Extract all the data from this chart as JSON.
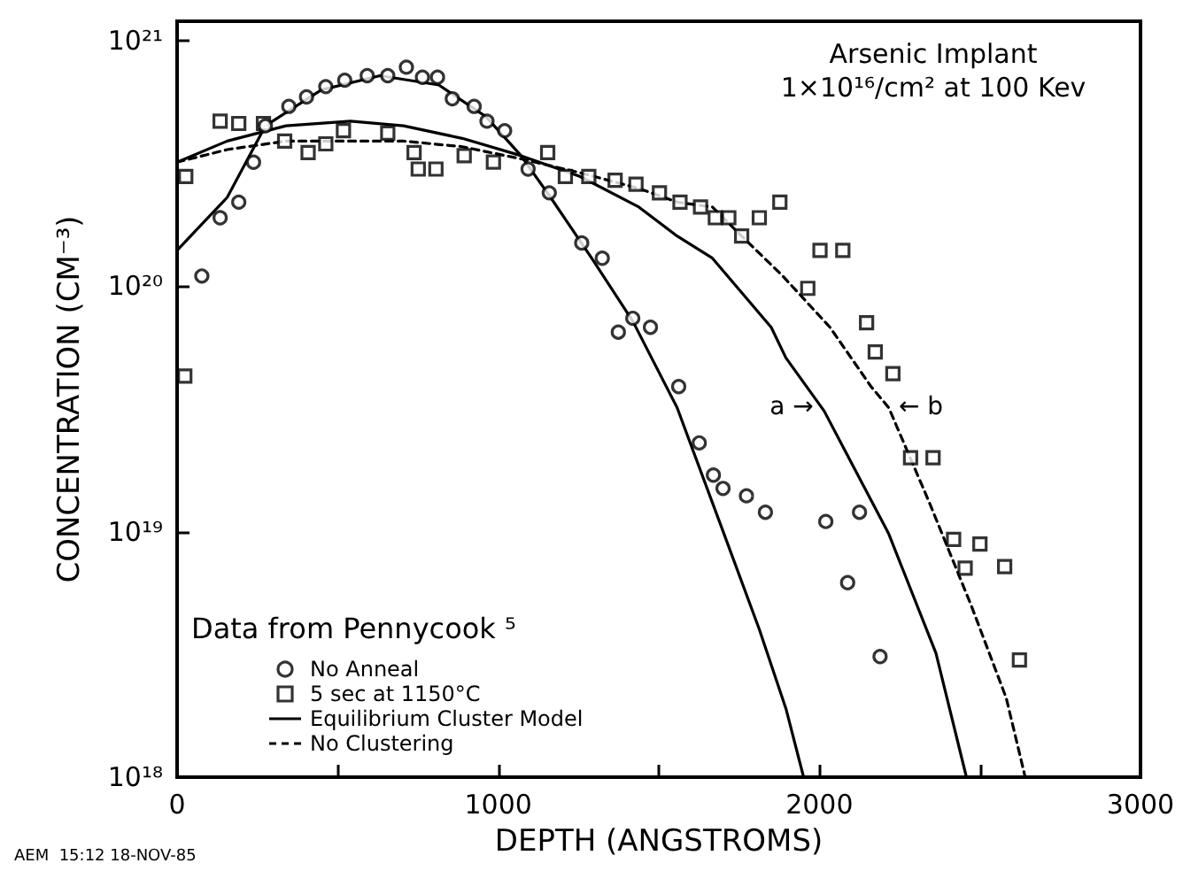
{
  "chart_data": {
    "type": "scatter",
    "title": "Arsenic Implant",
    "subtitle": "1×10¹⁶/cm² at 100 Kev",
    "xlabel": "DEPTH (ANGSTROMS)",
    "ylabel": "CONCENTRATION (CM⁻³)",
    "legend_title": "Data from Pennycook ⁵",
    "legend": "bottom left",
    "log": "y",
    "grid": false,
    "xlim": [
      0,
      3000
    ],
    "xticks": [
      0,
      {
        "value": 500,
        "label": null
      },
      1000,
      {
        "value": 1500,
        "label": null
      },
      2000,
      {
        "value": 2500,
        "label": null
      },
      3000
    ],
    "ylim": [
      1e+18,
      1.2e+21
    ],
    "yticks": [
      {
        "value": 1e+18,
        "label": "10¹⁸"
      },
      {
        "value": 1e+19,
        "label": "10¹⁹"
      },
      {
        "value": 1e+20,
        "label": "10²⁰"
      },
      {
        "value": 1e+21,
        "label": "10²¹"
      }
    ],
    "annotations": [
      "a →",
      "← b",
      "AEM  15:12 18-NOV-85"
    ],
    "series": [
      {
        "name": "No Anneal",
        "marker": "circle",
        "color": "#000000",
        "x": [
          77,
          134,
          192,
          238,
          275,
          348,
          403,
          463,
          522,
          592,
          656,
          714,
          764,
          811,
          857,
          925,
          965,
          1020,
          1093,
          1159,
          1260,
          1324,
          1374,
          1419,
          1474,
          1562,
          1626,
          1670,
          1700,
          1773,
          1832,
          2020,
          2088,
          2125,
          2189
        ],
        "values": [
          1.1e+20,
          1.9e+20,
          2.2e+20,
          3.2e+20,
          4.5e+20,
          5.4e+20,
          5.9e+20,
          6.5e+20,
          6.9e+20,
          7.2e+20,
          7.2e+20,
          7.8e+20,
          7.1e+20,
          7.1e+20,
          5.8e+20,
          5.4e+20,
          4.7e+20,
          4.3e+20,
          3e+20,
          2.4e+20,
          1.5e+20,
          1.3e+20,
          6.5e+19,
          7.4e+19,
          6.8e+19,
          3.9e+19,
          2.3e+19,
          1.7e+19,
          1.5e+19,
          1.4e+19,
          1.2e+19,
          1.1e+19,
          6.2e+18,
          1.2e+19,
          3.1e+18
        ]
      },
      {
        "name": "5 sec at 1150°C",
        "marker": "square",
        "color": "#000000",
        "x": [
          24,
          27,
          134,
          192,
          269,
          335,
          408,
          463,
          518,
          656,
          738,
          751,
          806,
          894,
          985,
          1154,
          1209,
          1282,
          1364,
          1429,
          1502,
          1566,
          1630,
          1676,
          1718,
          1758,
          1813,
          1877,
          1964,
          2002,
          2073,
          2147,
          2174,
          2229,
          2284,
          2354,
          2418,
          2454,
          2500,
          2577,
          2623
        ],
        "values": [
          4.3e+19,
          2.8e+20,
          4.7e+20,
          4.6e+20,
          4.6e+20,
          3.9e+20,
          3.5e+20,
          3.8e+20,
          4.3e+20,
          4.2e+20,
          3.5e+20,
          3e+20,
          3e+20,
          3.4e+20,
          3.2e+20,
          3.5e+20,
          2.8e+20,
          2.8e+20,
          2.7e+20,
          2.6e+20,
          2.4e+20,
          2.2e+20,
          2.1e+20,
          1.9e+20,
          1.9e+20,
          1.6e+20,
          1.9e+20,
          2.2e+20,
          9.8e+19,
          1.4e+20,
          1.4e+20,
          7.1e+19,
          5.4e+19,
          4.4e+19,
          2e+19,
          2e+19,
          9.3e+18,
          7.1e+18,
          8.9e+18,
          7.2e+18,
          3e+18
        ]
      },
      {
        "type": "line",
        "marker": "none",
        "line_style": "solid",
        "color": "#000000",
        "x": [
          0,
          156,
          275,
          449,
          632,
          815,
          962,
          1071,
          1163,
          1291,
          1419,
          1557,
          1703,
          1813,
          1896,
          1951
        ],
        "values": [
          1.4e+20,
          2.3e+20,
          4.5e+20,
          6.3e+20,
          7.2e+20,
          6.6e+20,
          4.9e+20,
          3.4e+20,
          2.3e+20,
          1.3e+20,
          7.2e+19,
          3.2e+19,
          9.8e+18,
          4e+18,
          1.9e+18,
          1e+18
        ]
      },
      {
        "name": "Equilibrium Cluster Model",
        "type": "line",
        "marker": "none",
        "line_style": "solid",
        "color": "#000000",
        "x": [
          0,
          156,
          339,
          540,
          705,
          888,
          1071,
          1254,
          1438,
          1557,
          1667,
          1850,
          1896,
          2015,
          2216,
          2363,
          2458
        ],
        "values": [
          3.2e+20,
          3.9e+20,
          4.5e+20,
          4.7e+20,
          4.5e+20,
          4e+20,
          3.4e+20,
          2.8e+20,
          2.1e+20,
          1.6e+20,
          1.3e+20,
          6.8e+19,
          5.1e+19,
          3.1e+19,
          9.8e+18,
          3.2e+18,
          1e+18
        ]
      },
      {
        "name": "No Clustering",
        "type": "line",
        "marker": "none",
        "line_style": "dashed",
        "color": "#000000",
        "x": [
          0,
          156,
          339,
          540,
          705,
          888,
          1071,
          1254,
          1438,
          1557,
          1667,
          1758,
          1886,
          2033,
          2161,
          2216,
          2344,
          2473,
          2582,
          2641
        ],
        "values": [
          3.2e+20,
          3.6e+20,
          3.9e+20,
          3.9e+20,
          3.9e+20,
          3.7e+20,
          3.3e+20,
          2.9e+20,
          2.5e+20,
          2.2e+20,
          2.1e+20,
          1.6e+20,
          1.1e+20,
          6.8e+19,
          3.9e+19,
          3.2e+19,
          1.3e+19,
          5e+18,
          2.1e+18,
          1e+18
        ]
      }
    ]
  }
}
